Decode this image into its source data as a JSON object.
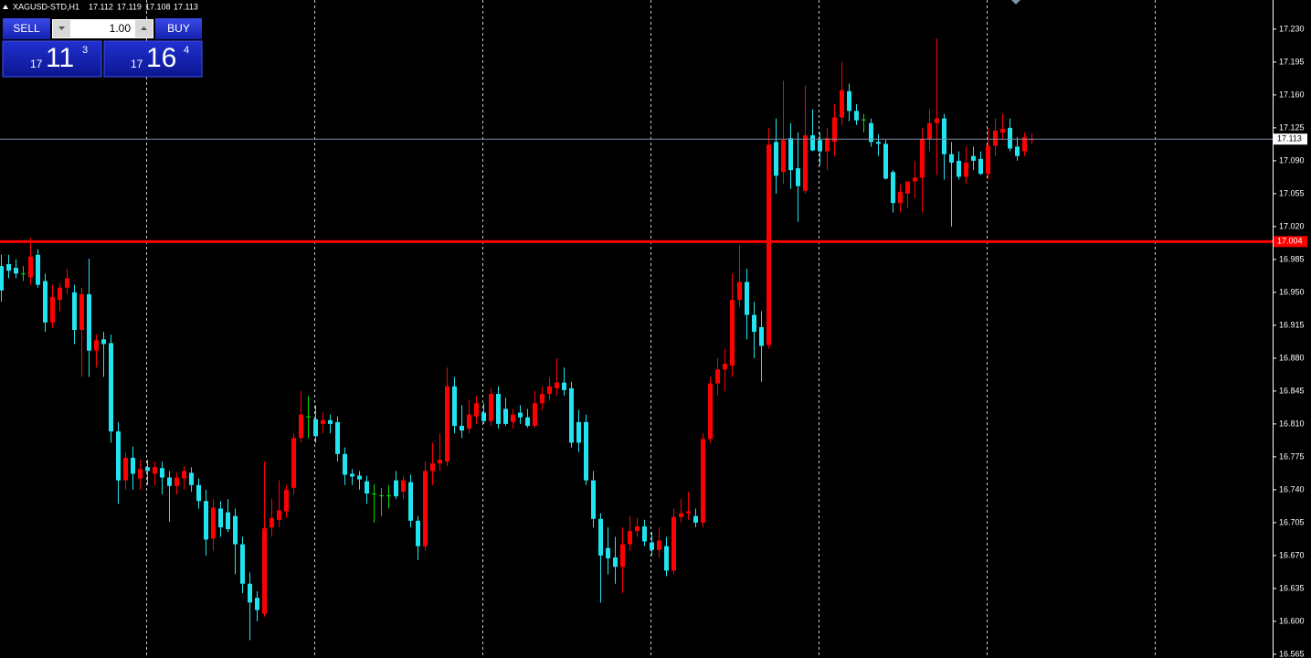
{
  "header": {
    "symbol": "XAGUSD-STD,H1"
  },
  "trade_panel": {
    "sell_label": "SELL",
    "buy_label": "BUY",
    "lot": "1.00",
    "sell_price": {
      "prefix": "17",
      "main": "11",
      "suffix": "3"
    },
    "buy_price": {
      "prefix": "17",
      "main": "16",
      "suffix": "4"
    }
  },
  "chart_data": {
    "type": "candlestick",
    "ylim": [
      16.561,
      17.261
    ],
    "yticks": [
      {
        "value": 17.23,
        "label": "17.230"
      },
      17.195,
      {
        "value": 17.16,
        "label": "17.160"
      },
      17.125,
      {
        "value": 17.09,
        "label": "17.090"
      },
      17.055,
      {
        "value": 17.02,
        "label": "17.020"
      },
      16.985,
      {
        "value": 16.95,
        "label": "16.950"
      },
      16.915,
      {
        "value": 16.88,
        "label": "16.880"
      },
      16.845,
      {
        "value": 16.81,
        "label": "16.810"
      },
      16.775,
      {
        "value": 16.74,
        "label": "16.740"
      },
      16.705,
      {
        "value": 16.67,
        "label": "16.670"
      },
      16.635,
      {
        "value": 16.6,
        "label": "16.600"
      },
      16.565
    ],
    "grid": true,
    "colors": {
      "up": "#ff0000",
      "down": "#22e4f0",
      "doji": "#00e000"
    },
    "price_lines": [
      {
        "value": 17.004,
        "color": "#ff0000"
      },
      {
        "value": 17.113,
        "color": "#8090a8"
      }
    ],
    "open": [
      16.978,
      16.98,
      16.976,
      16.97,
      16.966,
      16.99,
      16.962,
      16.918,
      16.942,
      16.955,
      16.95,
      16.91,
      16.948,
      16.888,
      16.9,
      16.896,
      16.802,
      16.75,
      16.774,
      16.752,
      16.764,
      16.757,
      16.763,
      16.753,
      16.744,
      16.752,
      16.758,
      16.745,
      16.728,
      16.688,
      16.72,
      16.716,
      16.712,
      16.682,
      16.64,
      16.625,
      16.608,
      16.7,
      16.708,
      16.717,
      16.742,
      16.795,
      16.818,
      16.815,
      16.81,
      16.814,
      16.812,
      16.778,
      16.757,
      16.755,
      16.749,
      16.736,
      16.734,
      16.734,
      16.75,
      16.738,
      16.748,
      16.707,
      16.68,
      16.76,
      16.768,
      16.77,
      16.85,
      16.808,
      16.805,
      16.818,
      16.822,
      16.813,
      16.842,
      16.826,
      16.812,
      16.822,
      16.817,
      16.808,
      16.832,
      16.842,
      16.848,
      16.854,
      16.848,
      16.812,
      16.812,
      16.75,
      16.709,
      16.678,
      16.668,
      16.658,
      16.682,
      16.696,
      16.701,
      16.684,
      16.676,
      16.68,
      16.654,
      16.711,
      16.715,
      16.712,
      16.705,
      16.794,
      16.853,
      16.868,
      16.872,
      16.942,
      16.961,
      16.926,
      16.913,
      16.894,
      17.11,
      17.078,
      17.114,
      17.082,
      17.058,
      17.117,
      17.112,
      17.1,
      17.11,
      17.136,
      17.164,
      17.143,
      17.134,
      17.13,
      17.11,
      17.108,
      17.078,
      17.045,
      17.055,
      17.068,
      17.072,
      17.113,
      17.13,
      17.135,
      17.097,
      17.09,
      17.073,
      17.095,
      17.092,
      17.076,
      17.106,
      17.12,
      17.125,
      17.105,
      17.1,
      17.112
    ],
    "high": [
      16.99,
      16.99,
      16.985,
      16.978,
      17.008,
      16.996,
      16.97,
      16.958,
      16.96,
      16.975,
      16.958,
      16.955,
      16.986,
      16.905,
      16.908,
      16.905,
      16.812,
      16.78,
      16.786,
      16.772,
      16.772,
      16.77,
      16.77,
      16.76,
      16.758,
      16.765,
      16.764,
      16.752,
      16.74,
      16.73,
      16.728,
      16.73,
      16.72,
      16.69,
      16.652,
      16.632,
      16.77,
      16.73,
      16.75,
      16.745,
      16.8,
      16.845,
      16.84,
      16.83,
      16.822,
      16.82,
      16.818,
      16.785,
      16.762,
      16.76,
      16.755,
      16.746,
      16.742,
      16.745,
      16.76,
      16.755,
      16.756,
      16.712,
      16.77,
      16.79,
      16.8,
      16.87,
      16.86,
      16.83,
      16.835,
      16.84,
      16.832,
      16.848,
      16.85,
      16.838,
      16.826,
      16.83,
      16.826,
      16.845,
      16.85,
      16.86,
      16.88,
      16.87,
      16.855,
      16.825,
      16.82,
      16.76,
      16.715,
      16.7,
      16.69,
      16.7,
      16.712,
      16.71,
      16.708,
      16.695,
      16.7,
      16.69,
      16.72,
      16.73,
      16.738,
      16.72,
      16.8,
      16.86,
      16.88,
      16.89,
      16.97,
      17.0,
      16.975,
      16.94,
      16.93,
      17.125,
      17.135,
      17.175,
      17.13,
      17.12,
      17.17,
      17.145,
      17.12,
      17.125,
      17.15,
      17.195,
      17.172,
      17.15,
      17.14,
      17.135,
      17.118,
      17.112,
      17.08,
      17.065,
      17.068,
      17.09,
      17.125,
      17.145,
      17.22,
      17.14,
      17.11,
      17.1,
      17.105,
      17.105,
      17.1,
      17.125,
      17.135,
      17.14,
      17.135,
      17.115,
      17.12,
      17.119
    ],
    "low": [
      16.94,
      16.965,
      16.965,
      16.962,
      16.958,
      16.955,
      16.908,
      16.912,
      16.93,
      16.948,
      16.895,
      16.86,
      16.86,
      16.87,
      16.86,
      16.79,
      16.725,
      16.74,
      16.74,
      16.74,
      16.745,
      16.745,
      16.735,
      16.706,
      16.735,
      16.74,
      16.738,
      16.72,
      16.67,
      16.675,
      16.69,
      16.695,
      16.65,
      16.63,
      16.58,
      16.6,
      16.605,
      16.69,
      16.7,
      16.71,
      16.735,
      16.79,
      16.795,
      16.79,
      16.8,
      16.8,
      16.77,
      16.745,
      16.745,
      16.74,
      16.725,
      16.705,
      16.712,
      16.72,
      16.73,
      16.73,
      16.7,
      16.665,
      16.675,
      16.745,
      16.76,
      16.765,
      16.8,
      16.795,
      16.8,
      16.81,
      16.81,
      16.808,
      16.805,
      16.808,
      16.805,
      16.81,
      16.806,
      16.806,
      16.825,
      16.835,
      16.84,
      16.84,
      16.785,
      16.78,
      16.745,
      16.7,
      16.62,
      16.65,
      16.64,
      16.63,
      16.675,
      16.69,
      16.68,
      16.67,
      16.668,
      16.648,
      16.65,
      16.705,
      16.708,
      16.7,
      16.7,
      16.79,
      16.84,
      16.845,
      16.86,
      16.935,
      16.9,
      16.88,
      16.855,
      16.89,
      17.055,
      17.065,
      17.06,
      17.025,
      17.055,
      17.1,
      17.085,
      17.08,
      17.095,
      17.128,
      17.132,
      17.128,
      17.12,
      17.105,
      17.095,
      17.07,
      17.035,
      17.035,
      17.04,
      17.05,
      17.035,
      17.1,
      17.075,
      17.07,
      17.02,
      17.07,
      17.065,
      17.08,
      17.075,
      17.07,
      17.095,
      17.112,
      17.1,
      17.09,
      17.095,
      17.108
    ],
    "close": [
      16.952,
      16.973,
      16.97,
      16.97,
      16.988,
      16.958,
      16.918,
      16.945,
      16.955,
      16.965,
      16.91,
      16.948,
      16.888,
      16.899,
      16.895,
      16.802,
      16.75,
      16.774,
      16.757,
      16.762,
      16.76,
      16.764,
      16.753,
      16.744,
      16.753,
      16.76,
      16.745,
      16.728,
      16.687,
      16.721,
      16.7,
      16.698,
      16.682,
      16.64,
      16.62,
      16.612,
      16.699,
      16.71,
      16.718,
      16.74,
      16.795,
      16.82,
      16.818,
      16.797,
      16.814,
      16.81,
      16.778,
      16.756,
      16.754,
      16.751,
      16.736,
      16.736,
      16.734,
      16.734,
      16.733,
      16.75,
      16.707,
      16.68,
      16.76,
      16.768,
      16.772,
      16.85,
      16.808,
      16.803,
      16.82,
      16.832,
      16.813,
      16.842,
      16.81,
      16.81,
      16.82,
      16.817,
      16.808,
      16.832,
      16.842,
      16.85,
      16.854,
      16.846,
      16.79,
      16.79,
      16.75,
      16.709,
      16.67,
      16.667,
      16.658,
      16.682,
      16.696,
      16.701,
      16.685,
      16.676,
      16.686,
      16.654,
      16.711,
      16.715,
      16.717,
      16.705,
      16.794,
      16.853,
      16.868,
      16.874,
      16.942,
      16.961,
      16.926,
      16.908,
      16.893,
      17.107,
      17.074,
      17.112,
      17.08,
      17.063,
      17.117,
      17.101,
      17.1,
      17.114,
      17.136,
      17.165,
      17.143,
      17.133,
      17.134,
      17.11,
      17.108,
      17.071,
      17.045,
      17.057,
      17.068,
      17.072,
      17.113,
      17.13,
      17.135,
      17.097,
      17.088,
      17.073,
      17.088,
      17.09,
      17.076,
      17.106,
      17.122,
      17.124,
      17.103,
      17.095,
      17.115,
      17.113
    ]
  }
}
